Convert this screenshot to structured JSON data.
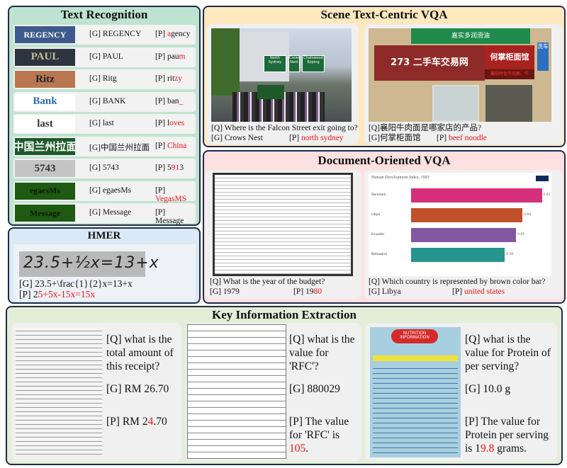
{
  "text_recognition": {
    "title": "Text Recognition",
    "rows": [
      {
        "image_text": "REGENCY",
        "img_bg": "#3d5a8c",
        "img_fg": "#ffffff",
        "gt": "[G] REGENCY",
        "pred": {
          "ok1": "",
          "err": "a",
          "ok2": "gency"
        }
      },
      {
        "image_text": "PAUL",
        "img_bg": "#2b3440",
        "img_fg": "#c9c08a",
        "gt": "[G] PAUL",
        "pred": {
          "ok1": "pau",
          "err": "m",
          "ok2": ""
        }
      },
      {
        "image_text": "Ritz",
        "img_bg": "#b9774f",
        "img_fg": "#1e2233",
        "gt": "[G] Ritg",
        "pred": {
          "ok1": "rit",
          "err": "zy",
          "ok2": ""
        }
      },
      {
        "image_text": "Bank",
        "img_bg": "#ffffff",
        "img_fg": "#2d6db5",
        "gt": "[G] BANK",
        "pred": {
          "ok1": "ban",
          "err": "_",
          "ok2": ""
        }
      },
      {
        "image_text": "last",
        "img_bg": "#ffffff",
        "img_fg": "#333333",
        "gt": "[G] last",
        "pred": {
          "ok1": "l",
          "err": "oves",
          "ok2": ""
        }
      },
      {
        "image_text": "中国兰州拉面",
        "img_bg": "#1f5a2a",
        "img_fg": "#ffffff",
        "gt": "[G]中国兰州拉面",
        "pred": {
          "ok1": "",
          "err": "China",
          "ok2": ""
        }
      },
      {
        "image_text": "5743",
        "img_bg": "#c4c4c4",
        "img_fg": "#333333",
        "gt": "[G] 5743",
        "pred": {
          "ok1": "5",
          "err": "91",
          "ok2": "3"
        }
      },
      {
        "image_text": "egaesMs",
        "img_bg": "#1f5a12",
        "img_fg": "#0a1a05",
        "gt": "[G] egaesMs",
        "pred": {
          "ok1": "",
          "err": "VegasMS",
          "ok2": ""
        }
      },
      {
        "image_text": "Message",
        "img_bg": "#1f5a12",
        "img_fg": "#0a1a05",
        "gt": "[G] Message",
        "pred": {
          "ok1": "Message",
          "err": "",
          "ok2": ""
        }
      }
    ]
  },
  "hmer": {
    "title": "HMER",
    "image_text": "23.5+½x=13+x",
    "gt": "[G] 23.5+\\frac{1}{2}x=13+x",
    "pred": {
      "ok1": "2",
      "err": "5+5x-15x=15x",
      "ok2": ""
    }
  },
  "scene_vqa": {
    "title": "Scene Text-Centric VQA",
    "items": [
      {
        "signs": [
          "North Sydney",
          "Crows Nest",
          "Chatswood Epping"
        ],
        "q": "[Q] Where is the Falcon Street exit going to?",
        "g": "[G] Crows Nest",
        "pred": {
          "ok1": "",
          "err": "north sydney",
          "ok2": ""
        }
      },
      {
        "signs": [
          "嘉实多润滑油",
          "273 二手车交易网",
          "何掌柜面馆",
          "襄阳特色牛肉面、牛",
          "洗车"
        ],
        "q": "[Q]襄阳牛肉面是哪家店的产品?",
        "g": "[G]何掌柜面馆",
        "pred": {
          "ok1": "",
          "err": "beef noodle",
          "ok2": ""
        }
      }
    ]
  },
  "doc_vqa": {
    "title": "Document-Oriented VQA",
    "items": [
      {
        "q": "[Q] What is the year of the budget?",
        "g": "[G] 1979",
        "pred": {
          "ok1": "19",
          "err": "80",
          "ok2": ""
        }
      },
      {
        "q": "[Q] Which country is represented by brown color bar?",
        "g": "[G] Libya",
        "pred": {
          "ok1": "",
          "err": "united states",
          "ok2": ""
        }
      }
    ],
    "embedded_chart": {
      "title": "Human Development Index, 1993",
      "categories": [
        "Denmark",
        "Libya",
        "Ecuador",
        "Botswana"
      ],
      "values": [
        0.81,
        0.69,
        0.65,
        0.58
      ],
      "colors": [
        "#d6307a",
        "#c1512a",
        "#8358a0",
        "#25968e"
      ],
      "xlim": [
        0,
        0.8
      ]
    }
  },
  "kie": {
    "title": "Key Information Extraction",
    "items": [
      {
        "q": "[Q] what is the total amount of this receipt?",
        "g": "[G] RM 26.70",
        "pred": {
          "ok1": "RM 2",
          "err": "4",
          "ok2": ".70"
        }
      },
      {
        "q": "[Q] what is the value for 'RFC'?",
        "g": "[G] 880029",
        "pred": {
          "ok1": "The value for 'RFC' is ",
          "err": "105",
          "ok2": "."
        }
      },
      {
        "q": "[Q] what is the value for Protein of per serving?",
        "g": "[G] 10.0 g",
        "pred": {
          "ok1": "The value for Protein per serving is 1",
          "err": "9.8",
          "ok2": " grams."
        }
      }
    ],
    "nutrition_label": "NUTRITION INFORMATION"
  },
  "pred_prefix": "[P] ",
  "colors": {
    "error": "#e8141b",
    "border": "#1e2b47"
  }
}
